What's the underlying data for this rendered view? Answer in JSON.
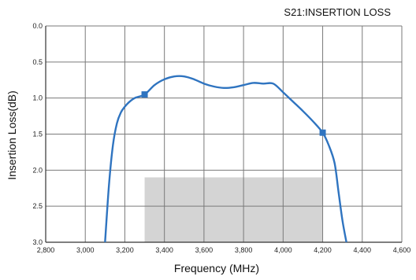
{
  "chart_data": {
    "type": "line",
    "title": "S21:INSERTION LOSS",
    "xlabel": "Frequency (MHz)",
    "ylabel": "Insertion Loss(dB)",
    "xlim": [
      2800,
      4600
    ],
    "ylim": [
      3.0,
      0.0
    ],
    "y_inverted": true,
    "grid": true,
    "x_ticks": [
      "2,800",
      "3,000",
      "3,200",
      "3,400",
      "3,600",
      "3,800",
      "4,000",
      "4,200",
      "4,400",
      "4,600"
    ],
    "y_ticks": [
      "0.0",
      "0.5",
      "1.0",
      "1.5",
      "2.0",
      "2.5",
      "3.0"
    ],
    "series": [
      {
        "color": "#2f74c0",
        "x": [
          3100,
          3120,
          3140,
          3160,
          3180,
          3200,
          3220,
          3250,
          3300,
          3350,
          3400,
          3450,
          3500,
          3550,
          3600,
          3650,
          3700,
          3750,
          3800,
          3850,
          3900,
          3950,
          4000,
          4050,
          4100,
          4150,
          4200,
          4230,
          4260,
          4280,
          4300,
          4320
        ],
        "y": [
          3.0,
          2.2,
          1.65,
          1.35,
          1.2,
          1.12,
          1.06,
          1.0,
          0.95,
          0.82,
          0.74,
          0.7,
          0.7,
          0.74,
          0.8,
          0.84,
          0.86,
          0.85,
          0.82,
          0.79,
          0.8,
          0.8,
          0.92,
          1.05,
          1.18,
          1.32,
          1.48,
          1.65,
          1.9,
          2.3,
          2.7,
          3.0
        ]
      }
    ],
    "markers": [
      {
        "x": 3300,
        "y": 0.95
      },
      {
        "x": 4200,
        "y": 1.48
      }
    ],
    "shaded_region": {
      "x0": 3300,
      "x1": 4200,
      "y0": 2.1,
      "y1": 3.0,
      "color": "#d4d4d4"
    },
    "colors": {
      "line": "#2f74c0",
      "grid": "#7a7a7a",
      "axis": "#333333",
      "shade": "#d4d4d4"
    }
  }
}
